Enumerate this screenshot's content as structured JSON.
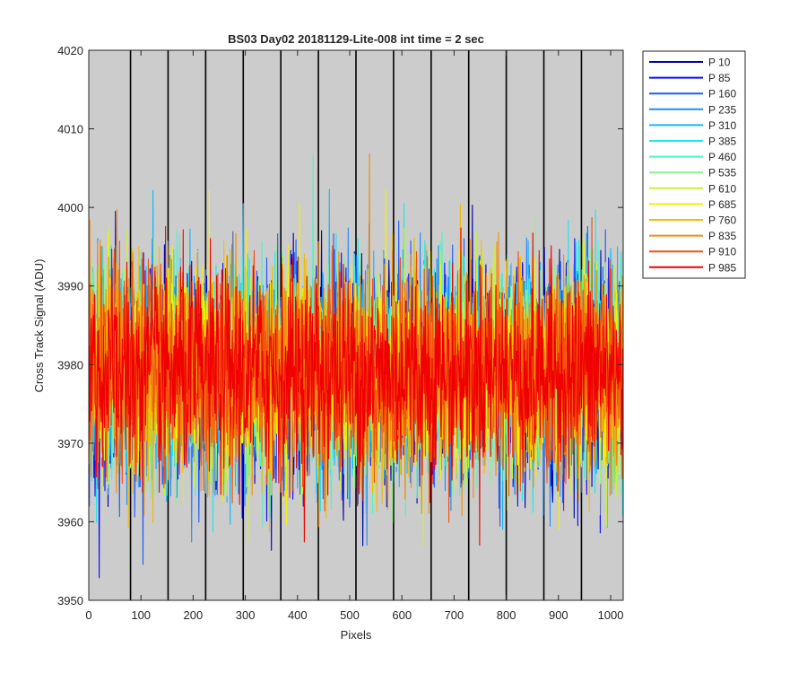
{
  "chart_data": {
    "type": "line",
    "title": "BS03 Day02 20181129-Lite-008 int time = 2 sec",
    "xlabel": "Pixels",
    "ylabel": "Cross Track Signal (ADU)",
    "xlim": [
      0,
      1024
    ],
    "ylim": [
      3950,
      4020
    ],
    "xticks": [
      0,
      100,
      200,
      300,
      400,
      500,
      600,
      700,
      800,
      900,
      1000
    ],
    "yticks": [
      3950,
      3960,
      3970,
      3980,
      3990,
      4000,
      4010,
      4020
    ],
    "x_tick_labels": [
      "0",
      "100",
      "200",
      "300",
      "400",
      "500",
      "600",
      "700",
      "800",
      "900",
      "1000"
    ],
    "y_tick_labels": [
      "3950",
      "3960",
      "3970",
      "3980",
      "3990",
      "4000",
      "4010",
      "4020"
    ],
    "background_color": "#cccccc",
    "vertical_separators_x": [
      80,
      152,
      224,
      296,
      368,
      440,
      512,
      584,
      656,
      728,
      800,
      872,
      944
    ],
    "legend_position": "outside-right-top",
    "noise_model": {
      "mean": 3979,
      "std": 6.5,
      "range_observed": [
        3950,
        4012
      ]
    },
    "series": [
      {
        "name": "P 10",
        "color": "#0000a8"
      },
      {
        "name": "P 85",
        "color": "#0a0aff"
      },
      {
        "name": "P 160",
        "color": "#1e5cff"
      },
      {
        "name": "P 235",
        "color": "#1e8cff"
      },
      {
        "name": "P 310",
        "color": "#10b8ff"
      },
      {
        "name": "P 385",
        "color": "#20e6ec"
      },
      {
        "name": "P 460",
        "color": "#50f2c8"
      },
      {
        "name": "P 535",
        "color": "#8cf28c"
      },
      {
        "name": "P 610",
        "color": "#c8f23c"
      },
      {
        "name": "P 685",
        "color": "#f2f200"
      },
      {
        "name": "P 760",
        "color": "#f2bc00"
      },
      {
        "name": "P 835",
        "color": "#f28c10"
      },
      {
        "name": "P 910",
        "color": "#f25010"
      },
      {
        "name": "P 985",
        "color": "#f00000"
      }
    ]
  }
}
